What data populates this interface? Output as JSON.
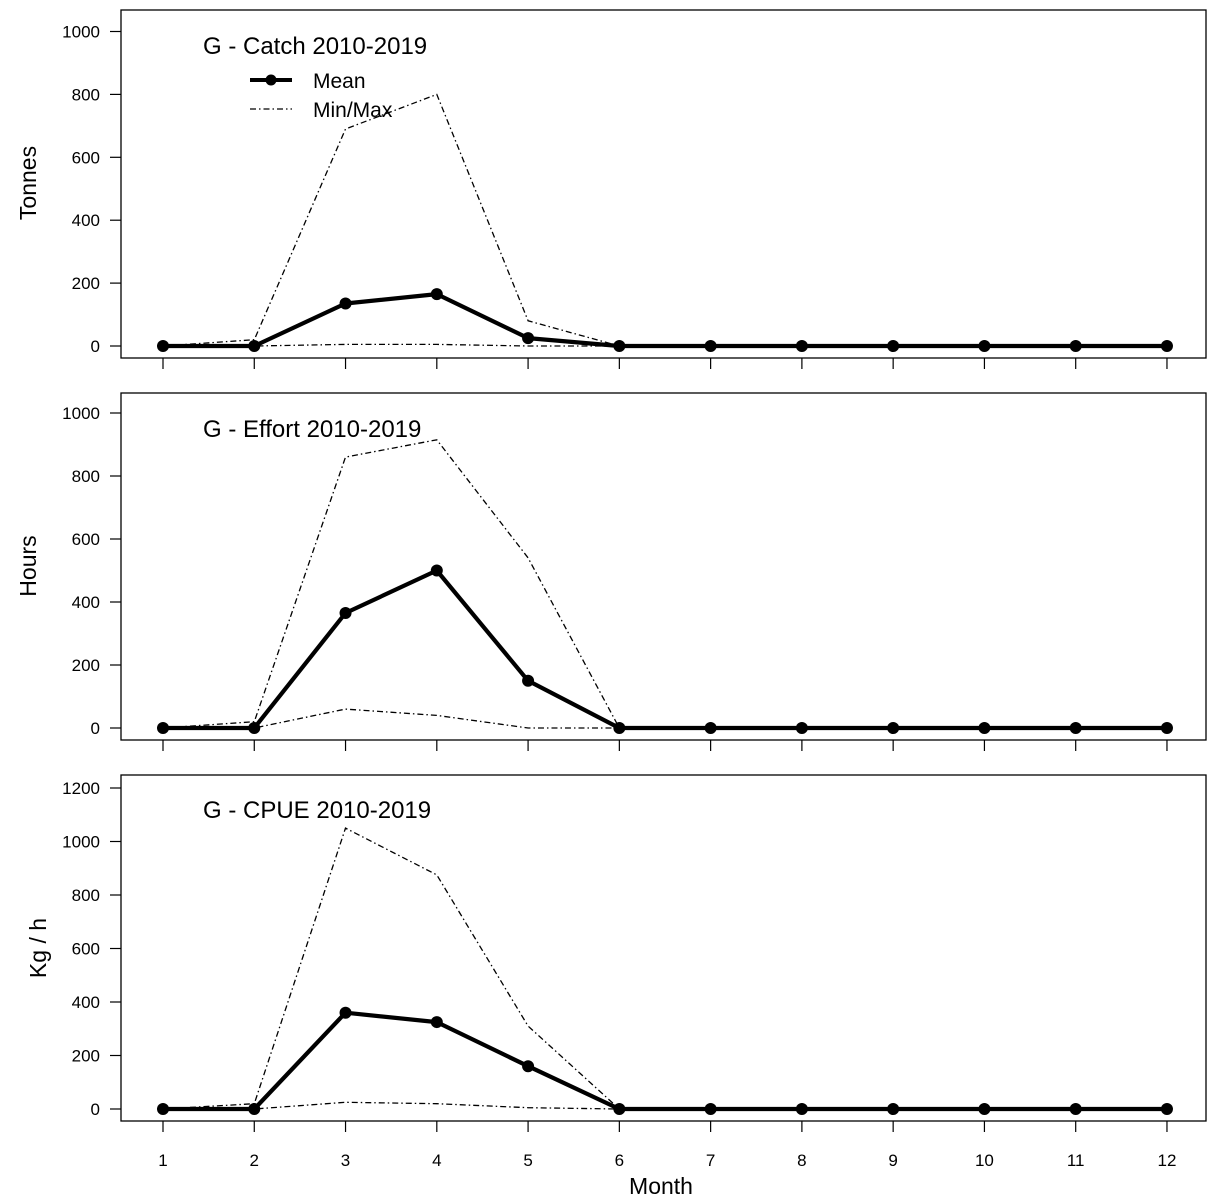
{
  "x_axis_label": "Month",
  "legend": {
    "mean_label": "Mean",
    "minmax_label": "Min/Max"
  },
  "colors": {
    "line": "#000000",
    "background": "#ffffff"
  },
  "chart_data": [
    {
      "type": "line",
      "title": "G - Catch 2010-2019",
      "ylabel": "Tonnes",
      "xlabel": "",
      "x": [
        1,
        2,
        3,
        4,
        5,
        6,
        7,
        8,
        9,
        10,
        11,
        12
      ],
      "ylim": [
        0,
        1000
      ],
      "yticks": [
        0,
        200,
        400,
        600,
        800,
        1000
      ],
      "series": [
        {
          "name": "Mean",
          "style": "solid-thick-points",
          "values": [
            0,
            0,
            135,
            165,
            25,
            0,
            0,
            0,
            0,
            0,
            0,
            0
          ]
        },
        {
          "name": "Min/Max",
          "style": "dashdot",
          "values": [
            0,
            20,
            690,
            800,
            80,
            0,
            0,
            0,
            0,
            0,
            0,
            0
          ]
        },
        {
          "name": "Min/Max",
          "style": "dashdot",
          "values": [
            0,
            0,
            5,
            5,
            0,
            0,
            0,
            0,
            0,
            0,
            0,
            0
          ]
        }
      ]
    },
    {
      "type": "line",
      "title": "G - Effort 2010-2019",
      "ylabel": "Hours",
      "xlabel": "",
      "x": [
        1,
        2,
        3,
        4,
        5,
        6,
        7,
        8,
        9,
        10,
        11,
        12
      ],
      "ylim": [
        0,
        1000
      ],
      "yticks": [
        0,
        200,
        400,
        600,
        800,
        1000
      ],
      "series": [
        {
          "name": "Mean",
          "style": "solid-thick-points",
          "values": [
            0,
            0,
            365,
            500,
            150,
            0,
            0,
            0,
            0,
            0,
            0,
            0
          ]
        },
        {
          "name": "Min/Max",
          "style": "dashdot",
          "values": [
            0,
            20,
            860,
            915,
            540,
            0,
            0,
            0,
            0,
            0,
            0,
            0
          ]
        },
        {
          "name": "Min/Max",
          "style": "dashdot",
          "values": [
            0,
            0,
            60,
            40,
            0,
            0,
            0,
            0,
            0,
            0,
            0,
            0
          ]
        }
      ]
    },
    {
      "type": "line",
      "title": "G - CPUE 2010-2019",
      "ylabel": "Kg / h",
      "xlabel": "Month",
      "x": [
        1,
        2,
        3,
        4,
        5,
        6,
        7,
        8,
        9,
        10,
        11,
        12
      ],
      "ylim": [
        0,
        1200
      ],
      "yticks": [
        0,
        200,
        400,
        600,
        800,
        1000,
        1200
      ],
      "series": [
        {
          "name": "Mean",
          "style": "solid-thick-points",
          "values": [
            0,
            0,
            360,
            325,
            160,
            0,
            0,
            0,
            0,
            0,
            0,
            0
          ]
        },
        {
          "name": "Min/Max",
          "style": "dashdot",
          "values": [
            0,
            20,
            1050,
            875,
            310,
            0,
            0,
            0,
            0,
            0,
            0,
            0
          ]
        },
        {
          "name": "Min/Max",
          "style": "dashdot",
          "values": [
            0,
            0,
            25,
            20,
            5,
            0,
            0,
            0,
            0,
            0,
            0,
            0
          ]
        }
      ]
    }
  ]
}
